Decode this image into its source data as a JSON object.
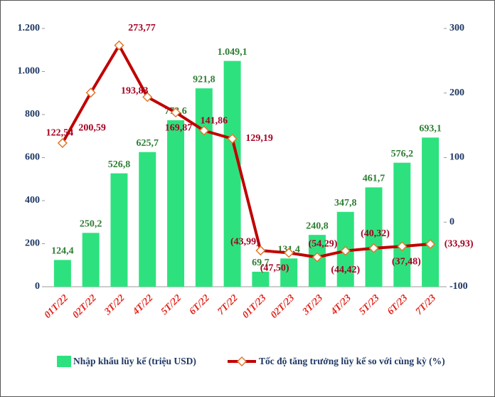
{
  "chart_data": {
    "type": "bar_line",
    "categories": [
      "01T/22",
      "02T/22",
      "3T/22",
      "4T/22",
      "5T/22",
      "6T/22",
      "7T/22",
      "01T/23",
      "02T/23",
      "3T/23",
      "4T/23",
      "5T/23",
      "6T/23",
      "7T/23"
    ],
    "series": [
      {
        "name": "Nhập khẩu lũy kế (triệu USD)",
        "color": "#2de27e",
        "type": "bar",
        "values": [
          124.4,
          250.2,
          526.8,
          625.7,
          773.6,
          921.8,
          1049.1,
          69.7,
          131.4,
          240.8,
          347.8,
          461.7,
          576.2,
          693.1
        ],
        "value_labels": [
          "124,4",
          "250,2",
          "526,8",
          "625,7",
          "773,6",
          "921,8",
          "1.049,1",
          "69,7",
          "131,4",
          "240,8",
          "347,8",
          "461,7",
          "576,2",
          "693,1"
        ]
      },
      {
        "name": "Tốc độ tăng trưởng lũy kế so với cùng kỳ (%)",
        "color": "#c00000",
        "type": "line",
        "axis": "y2",
        "values": [
          122.54,
          200.59,
          273.77,
          193.83,
          169.87,
          141.86,
          129.19,
          -43.99,
          -47.5,
          -54.29,
          -44.42,
          -40.32,
          -37.48,
          -33.93
        ],
        "value_labels": [
          "122,54",
          "200,59",
          "273,77",
          "193,83",
          "169,87",
          "141,86",
          "129,19",
          "(43,99)",
          "(47,50)",
          "(54,29)",
          "(44,42)",
          "(40,32)",
          "(37,48)",
          "(33,93)"
        ]
      }
    ],
    "ylim": [
      0,
      1200
    ],
    "yticks": [
      0,
      200,
      400,
      600,
      800,
      {
        "value": 1000,
        "label": "1.000"
      },
      {
        "value": 1200,
        "label": "1.200"
      }
    ],
    "y2lim": [
      -100,
      300
    ],
    "y2ticks": [
      -100,
      0,
      100,
      200,
      300
    ]
  }
}
